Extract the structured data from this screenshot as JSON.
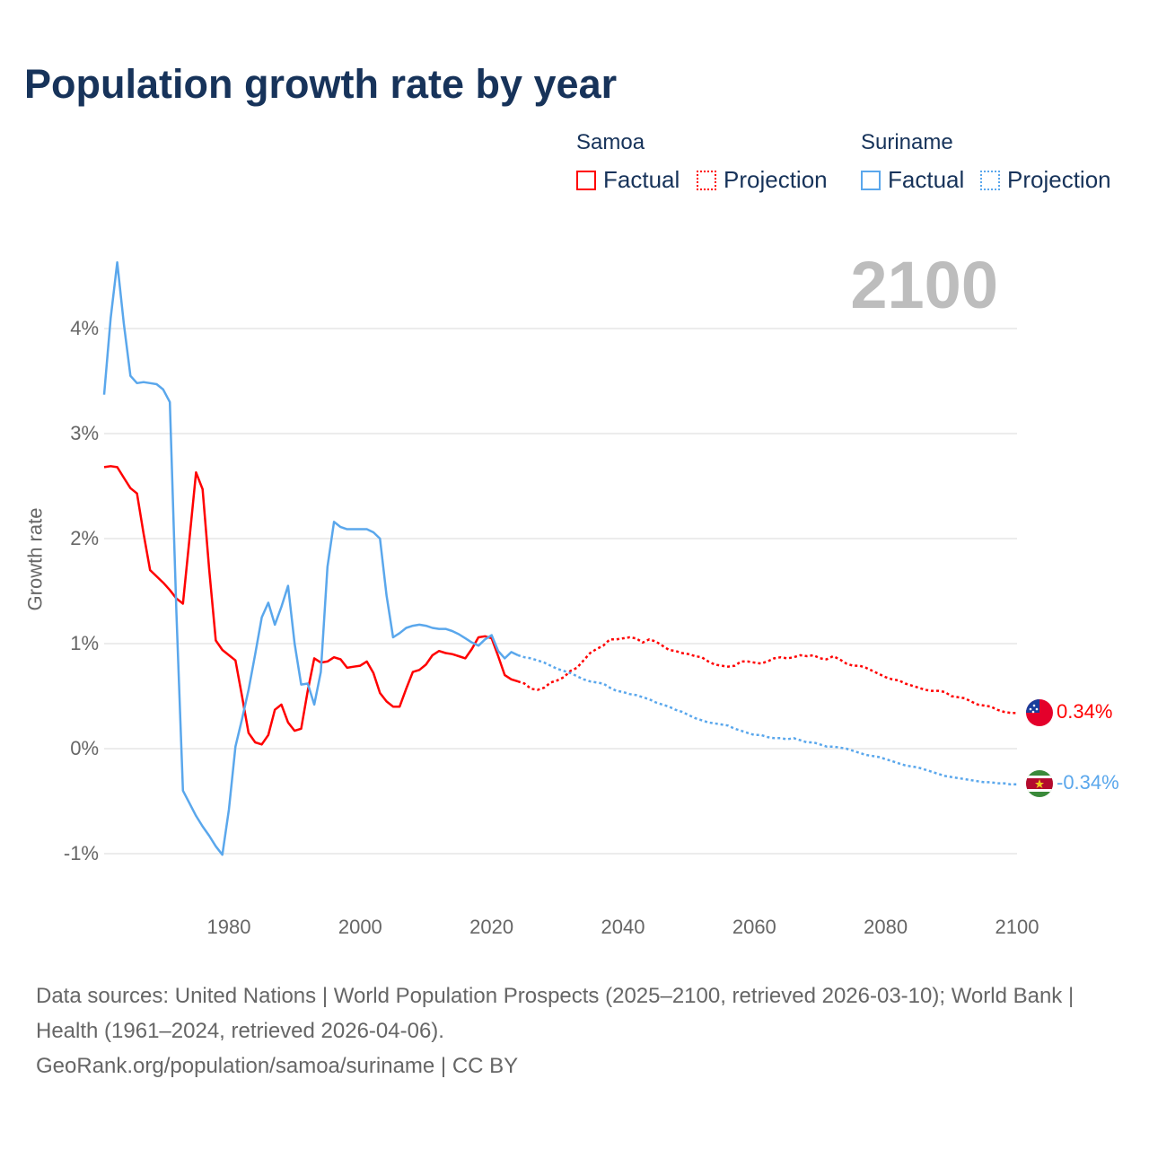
{
  "title": "Population growth rate by year",
  "current_year": "2100",
  "legend": {
    "samoa": {
      "name": "Samoa",
      "factual": "Factual",
      "projection": "Projection"
    },
    "suriname": {
      "name": "Suriname",
      "factual": "Factual",
      "projection": "Projection"
    }
  },
  "end_labels": {
    "samoa": "0.34%",
    "suriname": "-0.34%"
  },
  "footer": {
    "sources": "Data sources: United Nations | World Population Prospects (2025–2100, retrieved 2026-03-10); World Bank | Health (1961–2024, retrieved 2026-04-06).",
    "link": "GeoRank.org/population/samoa/suriname | CC BY"
  },
  "colors": {
    "samoa": "#ff0000",
    "suriname": "#5aa7ec",
    "title": "#17335a",
    "grid": "#e6e6e6"
  },
  "chart_data": {
    "type": "line",
    "title": "Population growth rate by year",
    "xlabel": "",
    "ylabel": "Growth rate",
    "xlim": [
      1961,
      2100
    ],
    "ylim": [
      -1.5,
      4.8
    ],
    "x_ticks": [
      "1980",
      "2000",
      "2020",
      "2040",
      "2060",
      "2080",
      "2100"
    ],
    "y_ticks": [
      {
        "value": 4,
        "label": "4%"
      },
      {
        "value": 3,
        "label": "3%"
      },
      {
        "value": 2,
        "label": "2%"
      },
      {
        "value": 1,
        "label": "1%"
      },
      {
        "value": 0,
        "label": "0%"
      },
      {
        "value": -1,
        "label": "-1%"
      }
    ],
    "grid": true,
    "legend_position": "top-right",
    "series": [
      {
        "name": "Samoa Factual",
        "country": "samoa",
        "style": "solid",
        "start_year": 1961,
        "values": [
          2.68,
          2.69,
          2.68,
          2.58,
          2.48,
          2.43,
          2.05,
          1.7,
          1.64,
          1.58,
          1.51,
          1.43,
          1.38,
          2.0,
          2.63,
          2.47,
          1.7,
          1.03,
          0.94,
          0.89,
          0.84,
          0.5,
          0.15,
          0.06,
          0.04,
          0.13,
          0.37,
          0.42,
          0.25,
          0.17,
          0.19,
          0.55,
          0.86,
          0.82,
          0.83,
          0.87,
          0.85,
          0.77,
          0.78,
          0.79,
          0.83,
          0.72,
          0.53,
          0.45,
          0.4,
          0.4,
          0.57,
          0.73,
          0.75,
          0.8,
          0.89,
          0.93,
          0.91,
          0.9,
          0.88,
          0.86,
          0.95,
          1.06,
          1.07,
          1.05,
          0.88,
          0.7,
          0.66,
          0.64
        ]
      },
      {
        "name": "Samoa Projection",
        "country": "samoa",
        "style": "dotted",
        "start_year": 2024,
        "values": [
          0.64,
          0.62,
          0.57,
          0.56,
          0.58,
          0.63,
          0.65,
          0.68,
          0.74,
          0.77,
          0.84,
          0.91,
          0.95,
          0.98,
          1.04,
          1.04,
          1.05,
          1.06,
          1.05,
          1.01,
          1.04,
          1.02,
          0.98,
          0.94,
          0.93,
          0.91,
          0.9,
          0.88,
          0.87,
          0.83,
          0.8,
          0.79,
          0.78,
          0.79,
          0.83,
          0.83,
          0.82,
          0.81,
          0.83,
          0.86,
          0.87,
          0.86,
          0.87,
          0.89,
          0.88,
          0.89,
          0.86,
          0.85,
          0.88,
          0.85,
          0.81,
          0.79,
          0.79,
          0.77,
          0.74,
          0.71,
          0.68,
          0.66,
          0.65,
          0.62,
          0.6,
          0.58,
          0.56,
          0.55,
          0.55,
          0.54,
          0.5,
          0.49,
          0.48,
          0.45,
          0.42,
          0.41,
          0.4,
          0.37,
          0.35,
          0.34,
          0.34
        ]
      },
      {
        "name": "Suriname Factual",
        "country": "suriname",
        "style": "solid",
        "start_year": 1961,
        "values": [
          3.37,
          4.1,
          4.63,
          4.05,
          3.55,
          3.48,
          3.49,
          3.48,
          3.47,
          3.42,
          3.3,
          1.3,
          -0.4,
          -0.52,
          -0.64,
          -0.74,
          -0.83,
          -0.93,
          -1.01,
          -0.58,
          0.02,
          0.28,
          0.56,
          0.9,
          1.25,
          1.39,
          1.18,
          1.35,
          1.55,
          1.0,
          0.61,
          0.62,
          0.42,
          0.73,
          1.73,
          2.16,
          2.11,
          2.09,
          2.09,
          2.09,
          2.09,
          2.06,
          2.0,
          1.46,
          1.06,
          1.1,
          1.15,
          1.17,
          1.18,
          1.17,
          1.15,
          1.14,
          1.14,
          1.12,
          1.09,
          1.05,
          1.01,
          0.98,
          1.04,
          1.08,
          0.93,
          0.86,
          0.92,
          0.89
        ]
      },
      {
        "name": "Suriname Projection",
        "country": "suriname",
        "style": "dotted",
        "start_year": 2024,
        "values": [
          0.89,
          0.87,
          0.86,
          0.84,
          0.82,
          0.79,
          0.76,
          0.74,
          0.72,
          0.69,
          0.66,
          0.64,
          0.63,
          0.62,
          0.58,
          0.55,
          0.54,
          0.52,
          0.51,
          0.49,
          0.47,
          0.44,
          0.42,
          0.4,
          0.37,
          0.35,
          0.32,
          0.29,
          0.27,
          0.25,
          0.24,
          0.23,
          0.22,
          0.19,
          0.17,
          0.15,
          0.13,
          0.13,
          0.11,
          0.1,
          0.1,
          0.09,
          0.1,
          0.08,
          0.06,
          0.06,
          0.04,
          0.02,
          0.02,
          0.01,
          0.0,
          -0.02,
          -0.04,
          -0.06,
          -0.07,
          -0.08,
          -0.1,
          -0.12,
          -0.14,
          -0.16,
          -0.17,
          -0.18,
          -0.2,
          -0.22,
          -0.24,
          -0.26,
          -0.27,
          -0.28,
          -0.29,
          -0.3,
          -0.31,
          -0.32,
          -0.32,
          -0.33,
          -0.33,
          -0.34,
          -0.34
        ]
      }
    ]
  }
}
